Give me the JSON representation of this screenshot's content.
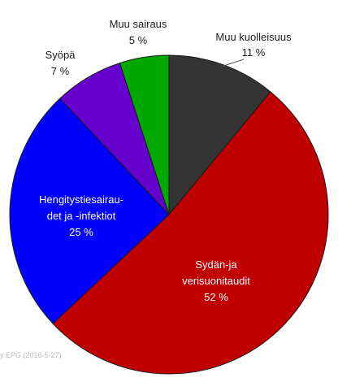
{
  "chart_data": {
    "type": "pie",
    "start_angle_deg": 0,
    "direction": "clockwise",
    "slice_order": [
      "muu-kuolleisuus",
      "sydan",
      "hengitys",
      "syopa",
      "muu-sairaus"
    ],
    "slices": [
      {
        "id": "muu-kuolleisuus",
        "lines": [
          "Muu kuolleisuus"
        ],
        "pct_label": "11 %",
        "value": 11,
        "color": "#333333",
        "label_style": "outside"
      },
      {
        "id": "sydan",
        "lines": [
          "Sydän-ja",
          "verisuonitaudit"
        ],
        "pct_label": "52 %",
        "value": 52,
        "color": "#c00000",
        "label_style": "inside"
      },
      {
        "id": "hengitys",
        "lines": [
          "Hengitystiesairau-",
          "det ja  -infektiot"
        ],
        "pct_label": "25 %",
        "value": 25,
        "color": "#0000ff",
        "label_style": "inside"
      },
      {
        "id": "syopa",
        "lines": [
          "Syöpä"
        ],
        "pct_label": "7 %",
        "value": 7,
        "color": "#6600cc",
        "label_style": "outside"
      },
      {
        "id": "muu-sairaus",
        "lines": [
          "Muu sairaus"
        ],
        "pct_label": "5 %",
        "value": 5,
        "color": "#00a800",
        "label_style": "outside"
      }
    ]
  },
  "watermark": "y EPG (2016-5-27)"
}
